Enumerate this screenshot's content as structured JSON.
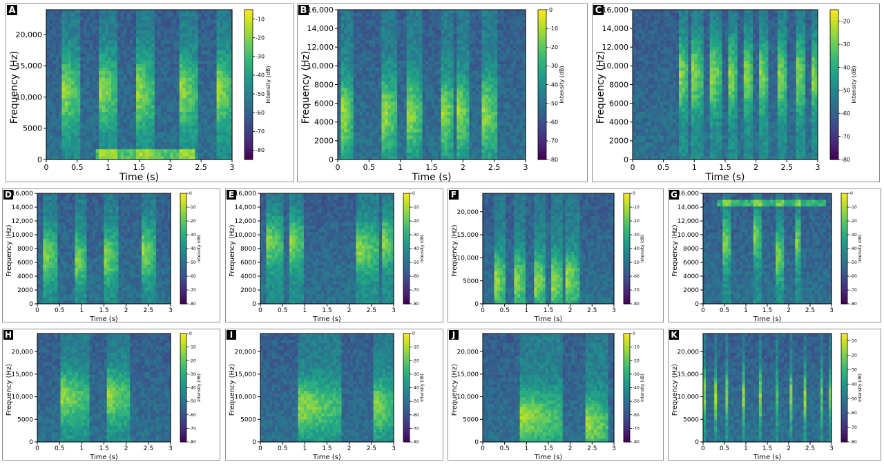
{
  "colors": {
    "viridis": [
      "#440154",
      "#482878",
      "#3e4a89",
      "#31688e",
      "#26828e",
      "#1f9e89",
      "#35b779",
      "#6ece58",
      "#b5de2b",
      "#fde725"
    ],
    "frame": "#8c8c8c"
  },
  "chart_data": [
    {
      "panel": "A",
      "type": "heatmap",
      "title": "",
      "xlabel": "Time (s)",
      "ylabel": "Frequency (Hz)",
      "xlim": [
        0,
        3
      ],
      "ylim": [
        0,
        24000
      ],
      "xticks": [
        0,
        0.5,
        1,
        1.5,
        2,
        2.5,
        3
      ],
      "xtick_labels": [
        "0",
        "0.5",
        "1",
        "1.5",
        "2",
        "2.5",
        "3"
      ],
      "yticks": [
        0,
        5000,
        10000,
        15000,
        20000
      ],
      "ytick_labels": [
        "0",
        "5000",
        "10,000",
        "15,000",
        "20,000"
      ],
      "colorbar": {
        "label": "Intensity (dB)",
        "range": [
          -85,
          -5
        ],
        "ticks": [
          -80,
          -70,
          -60,
          -50,
          -40,
          -30,
          -20,
          -10
        ],
        "tick_labels": [
          "-80",
          "-70",
          "-60",
          "-50",
          "-40",
          "-30",
          "-20",
          "-10"
        ]
      },
      "events": [
        {
          "t": 0.3,
          "f": 11000,
          "dur": 0.25
        },
        {
          "t": 0.9,
          "f": 11000,
          "dur": 0.25
        },
        {
          "t": 1.5,
          "f": 11000,
          "dur": 0.25
        },
        {
          "t": 2.2,
          "f": 11000,
          "dur": 0.25
        },
        {
          "t": 2.8,
          "f": 11000,
          "dur": 0.2
        }
      ],
      "bands": [
        {
          "t0": 0.8,
          "t1": 2.4,
          "f": 800
        }
      ]
    },
    {
      "panel": "B",
      "type": "heatmap",
      "title": "",
      "xlabel": "Time (s)",
      "ylabel": "Frequency (Hz)",
      "xlim": [
        0,
        3
      ],
      "ylim": [
        0,
        16000
      ],
      "xticks": [
        0,
        0.5,
        1,
        1.5,
        2,
        2.5,
        3
      ],
      "xtick_labels": [
        "0",
        "0.5",
        "1",
        "1.5",
        "2",
        "2.5",
        "3"
      ],
      "yticks": [
        0,
        2000,
        4000,
        6000,
        8000,
        10000,
        12000,
        14000,
        16000
      ],
      "ytick_labels": [
        "0",
        "2000",
        "4000",
        "6000",
        "8000",
        "10,000",
        "12,000",
        "14,000",
        "16,000"
      ],
      "colorbar": {
        "label": "Intensity (dB)",
        "range": [
          -80,
          0
        ],
        "ticks": [
          -80,
          -70,
          -60,
          -50,
          -40,
          -30,
          -20,
          -10,
          0
        ],
        "tick_labels": [
          "-80",
          "-70",
          "-60",
          "-50",
          "-40",
          "-30",
          "-20",
          "-10",
          "0"
        ]
      },
      "events": [
        {
          "t": 0.1,
          "f": 4800,
          "dur": 0.15
        },
        {
          "t": 0.75,
          "f": 5000,
          "dur": 0.2
        },
        {
          "t": 1.15,
          "f": 5000,
          "dur": 0.2
        },
        {
          "t": 1.7,
          "f": 5000,
          "dur": 0.15
        },
        {
          "t": 1.95,
          "f": 5000,
          "dur": 0.15
        },
        {
          "t": 2.35,
          "f": 5000,
          "dur": 0.2
        }
      ],
      "bands": []
    },
    {
      "panel": "C",
      "type": "heatmap",
      "title": "",
      "xlabel": "Time (s)",
      "ylabel": "Frequency (Hz)",
      "xlim": [
        0,
        3
      ],
      "ylim": [
        0,
        16000
      ],
      "xticks": [
        0,
        0.5,
        1,
        1.5,
        2,
        2.5,
        3
      ],
      "xtick_labels": [
        "0",
        "0.5",
        "1",
        "1.5",
        "2",
        "2.5",
        "3"
      ],
      "yticks": [
        0,
        2000,
        4000,
        6000,
        8000,
        10000,
        12000,
        14000,
        16000
      ],
      "ytick_labels": [
        "0",
        "2000",
        "4000",
        "6000",
        "8000",
        "10,000",
        "12,000",
        "14,000",
        "16,000"
      ],
      "colorbar": {
        "label": "Intensity (dB)",
        "range": [
          -80,
          -15
        ],
        "ticks": [
          -80,
          -70,
          -60,
          -50,
          -40,
          -30,
          -20
        ],
        "tick_labels": [
          "-80",
          "-70",
          "-60",
          "-50",
          "-40",
          "-30",
          "-20"
        ]
      },
      "events": [
        {
          "t": 0.8,
          "f": 9000,
          "dur": 0.1
        },
        {
          "t": 1.0,
          "f": 9000,
          "dur": 0.15
        },
        {
          "t": 1.3,
          "f": 9000,
          "dur": 0.15
        },
        {
          "t": 1.6,
          "f": 9000,
          "dur": 0.1
        },
        {
          "t": 1.85,
          "f": 9000,
          "dur": 0.1
        },
        {
          "t": 2.1,
          "f": 9000,
          "dur": 0.1
        },
        {
          "t": 2.4,
          "f": 9000,
          "dur": 0.1
        },
        {
          "t": 2.7,
          "f": 9000,
          "dur": 0.1
        },
        {
          "t": 2.95,
          "f": 9000,
          "dur": 0.05
        }
      ],
      "bands": []
    },
    {
      "panel": "D",
      "type": "heatmap",
      "title": "",
      "xlabel": "Time (s)",
      "ylabel": "Frequency (Hz)",
      "xlim": [
        0,
        3
      ],
      "ylim": [
        0,
        16000
      ],
      "xticks": [
        0,
        0.5,
        1,
        1.5,
        2,
        2.5,
        3
      ],
      "xtick_labels": [
        "0",
        "0.5",
        "1",
        "1.5",
        "2",
        "2.5",
        "3"
      ],
      "yticks": [
        0,
        2000,
        4000,
        6000,
        8000,
        10000,
        12000,
        14000,
        16000
      ],
      "ytick_labels": [
        "0",
        "2000",
        "4000",
        "6000",
        "8000",
        "10,000",
        "12,000",
        "14,000",
        "16,000"
      ],
      "colorbar": {
        "label": "Intensity (dB)",
        "range": [
          -80,
          0
        ],
        "ticks": [
          -80,
          -70,
          -60,
          -50,
          -40,
          -30,
          -20,
          -10,
          0
        ],
        "tick_labels": [
          "-80",
          "-70",
          "-60",
          "-50",
          "-40",
          "-30",
          "-20",
          "-10",
          "0"
        ]
      },
      "events": [
        {
          "t": 0.15,
          "f": 7000,
          "dur": 0.3
        },
        {
          "t": 0.85,
          "f": 6500,
          "dur": 0.25
        },
        {
          "t": 1.5,
          "f": 7000,
          "dur": 0.3
        },
        {
          "t": 2.4,
          "f": 7500,
          "dur": 0.25
        }
      ],
      "bands": []
    },
    {
      "panel": "E",
      "type": "heatmap",
      "title": "",
      "xlabel": "Time (s)",
      "ylabel": "Frequency (Hz)",
      "xlim": [
        0,
        3
      ],
      "ylim": [
        0,
        16000
      ],
      "xticks": [
        0,
        0.5,
        1,
        1.5,
        2,
        2.5,
        3
      ],
      "xtick_labels": [
        "0",
        "0.5",
        "1",
        "1.5",
        "2",
        "2.5",
        "3"
      ],
      "yticks": [
        0,
        2000,
        4000,
        6000,
        8000,
        10000,
        12000,
        14000,
        16000
      ],
      "ytick_labels": [
        "0",
        "2000",
        "4000",
        "6000",
        "8000",
        "10,000",
        "12,000",
        "14,000",
        "16,000"
      ],
      "colorbar": {
        "label": "Intensity (dB)",
        "range": [
          -80,
          0
        ],
        "ticks": [
          -80,
          -70,
          -60,
          -50,
          -40,
          -30,
          -20,
          -10,
          0
        ],
        "tick_labels": [
          "-80",
          "-70",
          "-60",
          "-50",
          "-40",
          "-30",
          "-20",
          "-10",
          "0"
        ]
      },
      "events": [
        {
          "t": 0.15,
          "f": 9000,
          "dur": 0.4
        },
        {
          "t": 0.7,
          "f": 9000,
          "dur": 0.3
        },
        {
          "t": 2.2,
          "f": 8000,
          "dur": 0.5
        },
        {
          "t": 2.8,
          "f": 9000,
          "dur": 0.2
        }
      ],
      "bands": []
    },
    {
      "panel": "F",
      "type": "heatmap",
      "title": "",
      "xlabel": "Time (s)",
      "ylabel": "Frequency (Hz)",
      "xlim": [
        0,
        3
      ],
      "ylim": [
        0,
        24000
      ],
      "xticks": [
        0,
        0.5,
        1,
        1.5,
        2,
        2.5,
        3
      ],
      "xtick_labels": [
        "0",
        "0.5",
        "1",
        "1.5",
        "2",
        "2.5",
        "3"
      ],
      "yticks": [
        0,
        5000,
        10000,
        15000,
        20000
      ],
      "ytick_labels": [
        "0",
        "5000",
        "10,000",
        "15,000",
        "20,000"
      ],
      "colorbar": {
        "label": "Intensity (dB)",
        "range": [
          -80,
          0
        ],
        "ticks": [
          -80,
          -70,
          -60,
          -50,
          -40,
          -30,
          -20,
          -10,
          0
        ],
        "tick_labels": [
          "-80",
          "-70",
          "-60",
          "-50",
          "-40",
          "-30",
          "-20",
          "-10",
          "0"
        ]
      },
      "events": [
        {
          "t": 0.3,
          "f": 5200,
          "dur": 0.25
        },
        {
          "t": 0.75,
          "f": 5200,
          "dur": 0.25
        },
        {
          "t": 1.2,
          "f": 5200,
          "dur": 0.25
        },
        {
          "t": 1.6,
          "f": 5200,
          "dur": 0.25
        },
        {
          "t": 1.95,
          "f": 5200,
          "dur": 0.25
        }
      ],
      "bands": []
    },
    {
      "panel": "G",
      "type": "heatmap",
      "title": "",
      "xlabel": "Time (s)",
      "ylabel": "Frequency (Hz)",
      "xlim": [
        0,
        3
      ],
      "ylim": [
        0,
        16000
      ],
      "xticks": [
        0,
        0.5,
        1,
        1.5,
        2,
        2.5,
        3
      ],
      "xtick_labels": [
        "0",
        "0.5",
        "1",
        "1.5",
        "2",
        "2.5",
        "3"
      ],
      "yticks": [
        0,
        2000,
        4000,
        6000,
        8000,
        10000,
        12000,
        14000,
        16000
      ],
      "ytick_labels": [
        "0",
        "2000",
        "4000",
        "6000",
        "8000",
        "10,000",
        "12,000",
        "14,000",
        "16,000"
      ],
      "colorbar": {
        "label": "Intensity (dB)",
        "range": [
          -80,
          0
        ],
        "ticks": [
          -80,
          -70,
          -60,
          -50,
          -40,
          -30,
          -20,
          -10,
          0
        ],
        "tick_labels": [
          "-80",
          "-70",
          "-60",
          "-50",
          "-40",
          "-30",
          "-20",
          "-10",
          "0"
        ]
      },
      "events": [
        {
          "t": 0.5,
          "f": 9000,
          "dur": 0.15
        },
        {
          "t": 1.2,
          "f": 10000,
          "dur": 0.15
        },
        {
          "t": 1.7,
          "f": 7000,
          "dur": 0.2
        },
        {
          "t": 2.2,
          "f": 9000,
          "dur": 0.1
        }
      ],
      "bands": [
        {
          "t0": 0.3,
          "t1": 2.9,
          "f": 14400
        }
      ]
    },
    {
      "panel": "H",
      "type": "heatmap",
      "title": "",
      "xlabel": "Time (s)",
      "ylabel": "Frequency (Hz)",
      "xlim": [
        0,
        3
      ],
      "ylim": [
        0,
        24000
      ],
      "xticks": [
        0,
        0.5,
        1,
        1.5,
        2,
        2.5,
        3
      ],
      "xtick_labels": [
        "0",
        "0.5",
        "1",
        "1.5",
        "2",
        "2.5",
        "3"
      ],
      "yticks": [
        0,
        5000,
        10000,
        15000,
        20000
      ],
      "ytick_labels": [
        "0",
        "5000",
        "10,000",
        "15,000",
        "20,000"
      ],
      "colorbar": {
        "label": "Intensity (dB)",
        "range": [
          -80,
          0
        ],
        "ticks": [
          -80,
          -70,
          -60,
          -50,
          -40,
          -30,
          -20,
          -10,
          0
        ],
        "tick_labels": [
          "-80",
          "-70",
          "-60",
          "-50",
          "-40",
          "-30",
          "-20",
          "-10",
          "0"
        ]
      },
      "events": [
        {
          "t": 0.55,
          "f": 10000,
          "dur": 0.6
        },
        {
          "t": 1.6,
          "f": 10000,
          "dur": 0.5
        }
      ],
      "bands": []
    },
    {
      "panel": "I",
      "type": "heatmap",
      "title": "",
      "xlabel": "Time (s)",
      "ylabel": "Frequency (Hz)",
      "xlim": [
        0,
        3
      ],
      "ylim": [
        0,
        24000
      ],
      "xticks": [
        0,
        0.5,
        1,
        1.5,
        2,
        2.5,
        3
      ],
      "xtick_labels": [
        "0",
        "0.5",
        "1",
        "1.5",
        "2",
        "2.5",
        "3"
      ],
      "yticks": [
        0,
        5000,
        10000,
        15000,
        20000
      ],
      "ytick_labels": [
        "0",
        "5000",
        "10,000",
        "15,000",
        "20,000"
      ],
      "colorbar": {
        "label": "Intensity (dB)",
        "range": [
          -80,
          0
        ],
        "ticks": [
          -80,
          -70,
          -60,
          -50,
          -40,
          -30,
          -20,
          -10,
          0
        ],
        "tick_labels": [
          "-80",
          "-70",
          "-60",
          "-50",
          "-40",
          "-30",
          "-20",
          "-10",
          "0"
        ]
      },
      "events": [
        {
          "t": 0.9,
          "f": 8000,
          "dur": 0.9
        },
        {
          "t": 2.6,
          "f": 8000,
          "dur": 0.4
        }
      ],
      "bands": []
    },
    {
      "panel": "J",
      "type": "heatmap",
      "title": "",
      "xlabel": "Time (s)",
      "ylabel": "Frequency (Hz)",
      "xlim": [
        0,
        3
      ],
      "ylim": [
        0,
        24000
      ],
      "xticks": [
        0,
        0.5,
        1,
        1.5,
        2,
        2.5,
        3
      ],
      "xtick_labels": [
        "0",
        "0.5",
        "1",
        "1.5",
        "2",
        "2.5",
        "3"
      ],
      "yticks": [
        0,
        5000,
        10000,
        15000,
        20000
      ],
      "ytick_labels": [
        "0",
        "5000",
        "10,000",
        "15,000",
        "20,000"
      ],
      "colorbar": {
        "label": "Intensity (dB)",
        "range": [
          -80,
          0
        ],
        "ticks": [
          -80,
          -70,
          -60,
          -50,
          -40,
          -30,
          -20,
          -10,
          0
        ],
        "tick_labels": [
          "-80",
          "-70",
          "-60",
          "-50",
          "-40",
          "-30",
          "-20",
          "-10",
          "0"
        ]
      },
      "events": [
        {
          "t": 0.9,
          "f": 5500,
          "dur": 0.9
        },
        {
          "t": 2.4,
          "f": 4000,
          "dur": 0.5
        }
      ],
      "bands": []
    },
    {
      "panel": "K",
      "type": "heatmap",
      "title": "",
      "xlabel": "Time (s)",
      "ylabel": "Frequency (Hz)",
      "xlim": [
        0,
        3
      ],
      "ylim": [
        0,
        24000
      ],
      "xticks": [
        0,
        0.5,
        1,
        1.5,
        2,
        2.5,
        3
      ],
      "xtick_labels": [
        "0",
        "0.5",
        "1",
        "1.5",
        "2",
        "2.5",
        "3"
      ],
      "yticks": [
        0,
        5000,
        10000,
        15000,
        20000
      ],
      "ytick_labels": [
        "0",
        "5000",
        "10,000",
        "15,000",
        "20,000"
      ],
      "colorbar": {
        "label": "Intensity (dB)",
        "range": [
          -80,
          -5
        ],
        "ticks": [
          -80,
          -70,
          -60,
          -50,
          -40,
          -30,
          -20,
          -10
        ],
        "tick_labels": [
          "-80",
          "-70",
          "-60",
          "-50",
          "-40",
          "-30",
          "-20",
          "-10"
        ]
      },
      "events": [
        {
          "t": 0.05,
          "f": 10000,
          "dur": 0.04
        },
        {
          "t": 0.3,
          "f": 10000,
          "dur": 0.04
        },
        {
          "t": 0.55,
          "f": 10000,
          "dur": 0.04
        },
        {
          "t": 0.95,
          "f": 10000,
          "dur": 0.04
        },
        {
          "t": 1.35,
          "f": 10000,
          "dur": 0.04
        },
        {
          "t": 1.7,
          "f": 10000,
          "dur": 0.04
        },
        {
          "t": 2.05,
          "f": 10000,
          "dur": 0.04
        },
        {
          "t": 2.4,
          "f": 10000,
          "dur": 0.04
        },
        {
          "t": 2.75,
          "f": 10000,
          "dur": 0.04
        },
        {
          "t": 2.95,
          "f": 10000,
          "dur": 0.04
        }
      ],
      "bands": []
    }
  ]
}
